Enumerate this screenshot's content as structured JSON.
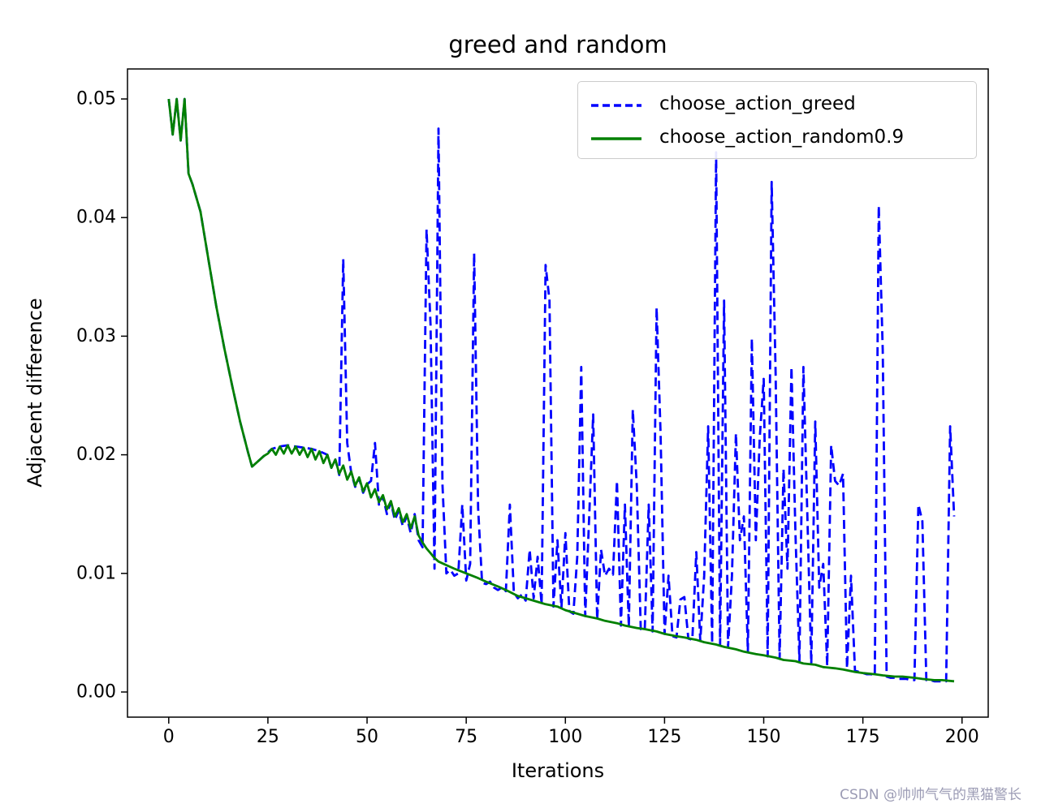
{
  "chart_data": {
    "type": "line",
    "title": "greed and random",
    "xlabel": "Iterations",
    "ylabel": "Adjacent difference",
    "xlim": [
      -10.4,
      206.6
    ],
    "ylim": [
      -0.00212,
      0.05253
    ],
    "grid": false,
    "legend_position": "upper right",
    "xticks": {
      "values": [
        0,
        25,
        50,
        75,
        100,
        125,
        150,
        175,
        200
      ],
      "labels": [
        "0",
        "25",
        "50",
        "75",
        "100",
        "125",
        "150",
        "175",
        "200"
      ]
    },
    "yticks": {
      "values": [
        0,
        0.01,
        0.02,
        0.03,
        0.04,
        0.05
      ],
      "labels": [
        "0.00",
        "0.01",
        "0.02",
        "0.03",
        "0.04",
        "0.05"
      ]
    },
    "series": [
      {
        "name": "choose_action_greed",
        "color": "#0000ff",
        "style": "dashed",
        "points": [
          [
            0,
            0.05
          ],
          [
            1,
            0.047
          ],
          [
            2,
            0.05
          ],
          [
            3,
            0.0465
          ],
          [
            4,
            0.05
          ],
          [
            5,
            0.0437
          ],
          [
            6,
            0.0428
          ],
          [
            8,
            0.0405
          ],
          [
            10,
            0.0365
          ],
          [
            12,
            0.0325
          ],
          [
            14,
            0.029
          ],
          [
            16,
            0.0258
          ],
          [
            18,
            0.0228
          ],
          [
            20,
            0.0202
          ],
          [
            21,
            0.019
          ],
          [
            22,
            0.0193
          ],
          [
            24,
            0.0199
          ],
          [
            26,
            0.0205
          ],
          [
            28,
            0.0207
          ],
          [
            30,
            0.0208
          ],
          [
            32,
            0.0207
          ],
          [
            34,
            0.0206
          ],
          [
            36,
            0.0205
          ],
          [
            38,
            0.0203
          ],
          [
            40,
            0.02
          ],
          [
            41,
            0.0189
          ],
          [
            42,
            0.0196
          ],
          [
            43,
            0.0183
          ],
          [
            44,
            0.0365
          ],
          [
            45,
            0.021
          ],
          [
            46,
            0.0185
          ],
          [
            47,
            0.0173
          ],
          [
            48,
            0.018
          ],
          [
            49,
            0.0168
          ],
          [
            50,
            0.0175
          ],
          [
            51,
            0.0178
          ],
          [
            52,
            0.021
          ],
          [
            53,
            0.0158
          ],
          [
            54,
            0.0165
          ],
          [
            55,
            0.015
          ],
          [
            56,
            0.016
          ],
          [
            57,
            0.0145
          ],
          [
            58,
            0.0153
          ],
          [
            59,
            0.014
          ],
          [
            60,
            0.0148
          ],
          [
            61,
            0.0134
          ],
          [
            62,
            0.015
          ],
          [
            63,
            0.0128
          ],
          [
            64,
            0.0122
          ],
          [
            65,
            0.039
          ],
          [
            66,
            0.031
          ],
          [
            67,
            0.0104
          ],
          [
            68,
            0.0475
          ],
          [
            69,
            0.0175
          ],
          [
            70,
            0.01
          ],
          [
            71,
            0.0103
          ],
          [
            72,
            0.0098
          ],
          [
            73,
            0.01
          ],
          [
            74,
            0.0158
          ],
          [
            75,
            0.0094
          ],
          [
            76,
            0.0108
          ],
          [
            77,
            0.037
          ],
          [
            78,
            0.0155
          ],
          [
            79,
            0.0092
          ],
          [
            80,
            0.0091
          ],
          [
            81,
            0.0093
          ],
          [
            82,
            0.0088
          ],
          [
            83,
            0.0086
          ],
          [
            84,
            0.0088
          ],
          [
            85,
            0.0085
          ],
          [
            86,
            0.0158
          ],
          [
            87,
            0.0084
          ],
          [
            88,
            0.0079
          ],
          [
            89,
            0.0082
          ],
          [
            90,
            0.0077
          ],
          [
            91,
            0.012
          ],
          [
            92,
            0.0079
          ],
          [
            93,
            0.0114
          ],
          [
            94,
            0.0074
          ],
          [
            95,
            0.036
          ],
          [
            96,
            0.033
          ],
          [
            97,
            0.0072
          ],
          [
            98,
            0.0128
          ],
          [
            99,
            0.0071
          ],
          [
            100,
            0.0134
          ],
          [
            101,
            0.0068
          ],
          [
            102,
            0.0066
          ],
          [
            103,
            0.0114
          ],
          [
            104,
            0.0274
          ],
          [
            105,
            0.0064
          ],
          [
            106,
            0.0148
          ],
          [
            107,
            0.0234
          ],
          [
            108,
            0.0061
          ],
          [
            109,
            0.012
          ],
          [
            110,
            0.0098
          ],
          [
            111,
            0.0104
          ],
          [
            112,
            0.0099
          ],
          [
            113,
            0.0178
          ],
          [
            114,
            0.0056
          ],
          [
            115,
            0.0158
          ],
          [
            116,
            0.0055
          ],
          [
            117,
            0.0238
          ],
          [
            118,
            0.0174
          ],
          [
            119,
            0.0053
          ],
          [
            120,
            0.0052
          ],
          [
            121,
            0.0158
          ],
          [
            122,
            0.0051
          ],
          [
            123,
            0.0324
          ],
          [
            124,
            0.0218
          ],
          [
            125,
            0.0049
          ],
          [
            126,
            0.0098
          ],
          [
            127,
            0.0047
          ],
          [
            128,
            0.0046
          ],
          [
            129,
            0.0078
          ],
          [
            130,
            0.008
          ],
          [
            131,
            0.0045
          ],
          [
            132,
            0.0044
          ],
          [
            133,
            0.0118
          ],
          [
            134,
            0.0043
          ],
          [
            135,
            0.0098
          ],
          [
            136,
            0.0224
          ],
          [
            137,
            0.0041
          ],
          [
            138,
            0.0455
          ],
          [
            139,
            0.004
          ],
          [
            140,
            0.033
          ],
          [
            141,
            0.0038
          ],
          [
            142,
            0.0098
          ],
          [
            143,
            0.0218
          ],
          [
            144,
            0.0128
          ],
          [
            145,
            0.0148
          ],
          [
            146,
            0.0034
          ],
          [
            147,
            0.0298
          ],
          [
            148,
            0.0128
          ],
          [
            149,
            0.0214
          ],
          [
            150,
            0.0264
          ],
          [
            151,
            0.003
          ],
          [
            152,
            0.043
          ],
          [
            153,
            0.0268
          ],
          [
            154,
            0.0028
          ],
          [
            155,
            0.0188
          ],
          [
            156,
            0.0104
          ],
          [
            157,
            0.0274
          ],
          [
            158,
            0.0134
          ],
          [
            159,
            0.0026
          ],
          [
            160,
            0.0274
          ],
          [
            161,
            0.0148
          ],
          [
            162,
            0.0024
          ],
          [
            163,
            0.0228
          ],
          [
            164,
            0.0088
          ],
          [
            165,
            0.0108
          ],
          [
            166,
            0.0022
          ],
          [
            167,
            0.0208
          ],
          [
            168,
            0.0178
          ],
          [
            169,
            0.0174
          ],
          [
            170,
            0.0184
          ],
          [
            171,
            0.002
          ],
          [
            172,
            0.0098
          ],
          [
            173,
            0.0018
          ],
          [
            174,
            0.0017
          ],
          [
            175,
            0.0016
          ],
          [
            176,
            0.0015
          ],
          [
            177,
            0.0015
          ],
          [
            178,
            0.0014
          ],
          [
            179,
            0.041
          ],
          [
            180,
            0.0288
          ],
          [
            181,
            0.0013
          ],
          [
            182,
            0.0012
          ],
          [
            183,
            0.0012
          ],
          [
            184,
            0.0011
          ],
          [
            185,
            0.0011
          ],
          [
            186,
            0.0011
          ],
          [
            187,
            0.001
          ],
          [
            188,
            0.001
          ],
          [
            189,
            0.0158
          ],
          [
            190,
            0.0144
          ],
          [
            191,
            0.001
          ],
          [
            192,
            0.001
          ],
          [
            193,
            0.0009
          ],
          [
            194,
            0.0009
          ],
          [
            195,
            0.0009
          ],
          [
            196,
            0.0009
          ],
          [
            197,
            0.0224
          ],
          [
            198,
            0.0148
          ]
        ]
      },
      {
        "name": "choose_action_random0.9",
        "color": "#008000",
        "style": "solid",
        "points": [
          [
            0,
            0.05
          ],
          [
            1,
            0.047
          ],
          [
            2,
            0.05
          ],
          [
            3,
            0.0465
          ],
          [
            4,
            0.05
          ],
          [
            5,
            0.0437
          ],
          [
            6,
            0.0428
          ],
          [
            8,
            0.0405
          ],
          [
            10,
            0.0365
          ],
          [
            12,
            0.0325
          ],
          [
            14,
            0.029
          ],
          [
            16,
            0.0258
          ],
          [
            18,
            0.0228
          ],
          [
            20,
            0.0202
          ],
          [
            21,
            0.019
          ],
          [
            22,
            0.0193
          ],
          [
            23,
            0.0196
          ],
          [
            24,
            0.0199
          ],
          [
            25,
            0.0201
          ],
          [
            26,
            0.0205
          ],
          [
            27,
            0.02
          ],
          [
            28,
            0.0207
          ],
          [
            29,
            0.0201
          ],
          [
            30,
            0.0208
          ],
          [
            31,
            0.0201
          ],
          [
            32,
            0.0207
          ],
          [
            33,
            0.02
          ],
          [
            34,
            0.0206
          ],
          [
            35,
            0.0198
          ],
          [
            36,
            0.0205
          ],
          [
            37,
            0.0196
          ],
          [
            38,
            0.0203
          ],
          [
            39,
            0.0193
          ],
          [
            40,
            0.02
          ],
          [
            41,
            0.0189
          ],
          [
            42,
            0.0196
          ],
          [
            43,
            0.0184
          ],
          [
            44,
            0.0191
          ],
          [
            45,
            0.0179
          ],
          [
            46,
            0.0186
          ],
          [
            47,
            0.0174
          ],
          [
            48,
            0.0181
          ],
          [
            49,
            0.0169
          ],
          [
            50,
            0.0176
          ],
          [
            51,
            0.0164
          ],
          [
            52,
            0.0171
          ],
          [
            53,
            0.016
          ],
          [
            54,
            0.0166
          ],
          [
            55,
            0.0154
          ],
          [
            56,
            0.0161
          ],
          [
            57,
            0.0148
          ],
          [
            58,
            0.0155
          ],
          [
            59,
            0.0143
          ],
          [
            60,
            0.015
          ],
          [
            61,
            0.0138
          ],
          [
            62,
            0.0148
          ],
          [
            63,
            0.0132
          ],
          [
            64,
            0.0126
          ],
          [
            65,
            0.0121
          ],
          [
            66,
            0.0117
          ],
          [
            67,
            0.0113
          ],
          [
            68,
            0.011
          ],
          [
            70,
            0.0107
          ],
          [
            72,
            0.0104
          ],
          [
            75,
            0.01
          ],
          [
            78,
            0.0096
          ],
          [
            80,
            0.0093
          ],
          [
            83,
            0.0089
          ],
          [
            85,
            0.0086
          ],
          [
            88,
            0.0081
          ],
          [
            90,
            0.0079
          ],
          [
            93,
            0.0076
          ],
          [
            95,
            0.0074
          ],
          [
            98,
            0.0072
          ],
          [
            100,
            0.0069
          ],
          [
            103,
            0.0066
          ],
          [
            105,
            0.0064
          ],
          [
            108,
            0.0062
          ],
          [
            110,
            0.006
          ],
          [
            113,
            0.0058
          ],
          [
            115,
            0.0056
          ],
          [
            118,
            0.0054
          ],
          [
            120,
            0.0053
          ],
          [
            123,
            0.0051
          ],
          [
            125,
            0.0049
          ],
          [
            128,
            0.0047
          ],
          [
            130,
            0.0046
          ],
          [
            133,
            0.0044
          ],
          [
            135,
            0.0042
          ],
          [
            138,
            0.004
          ],
          [
            140,
            0.0038
          ],
          [
            143,
            0.0036
          ],
          [
            145,
            0.0034
          ],
          [
            148,
            0.0032
          ],
          [
            150,
            0.0031
          ],
          [
            153,
            0.0029
          ],
          [
            155,
            0.0027
          ],
          [
            158,
            0.0026
          ],
          [
            160,
            0.0024
          ],
          [
            163,
            0.0023
          ],
          [
            165,
            0.0021
          ],
          [
            168,
            0.002
          ],
          [
            170,
            0.0019
          ],
          [
            173,
            0.0017
          ],
          [
            175,
            0.0016
          ],
          [
            178,
            0.0015
          ],
          [
            180,
            0.0014
          ],
          [
            183,
            0.0013
          ],
          [
            185,
            0.0013
          ],
          [
            188,
            0.0012
          ],
          [
            190,
            0.0011
          ],
          [
            193,
            0.001
          ],
          [
            195,
            0.001
          ],
          [
            198,
            0.0009
          ]
        ]
      }
    ]
  },
  "watermark": {
    "text": "CSDN @帅帅气气的黑猫警长",
    "color": "#9b9bb4"
  }
}
